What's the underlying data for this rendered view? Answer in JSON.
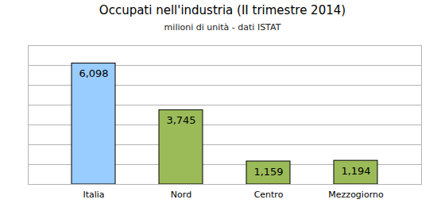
{
  "chart_data": {
    "type": "bar",
    "title": "Occupati nell'industria (II trimestre 2014)",
    "subtitle": "milioni di unità - dati ISTAT",
    "categories": [
      "Italia",
      "Nord",
      "Centro",
      "Mezzogiorno"
    ],
    "values": [
      6.098,
      3.745,
      1.159,
      1.194
    ],
    "value_labels": [
      "6,098",
      "3,745",
      "1,159",
      "1,194"
    ],
    "colors": [
      "#99ccff",
      "#9bbb59",
      "#9bbb59",
      "#9bbb59"
    ],
    "ylim": [
      0,
      7
    ],
    "yticks": [
      0,
      1,
      2,
      3,
      4,
      5,
      6,
      7
    ],
    "grid": true,
    "data_labels": true,
    "tick_labels": "x"
  }
}
